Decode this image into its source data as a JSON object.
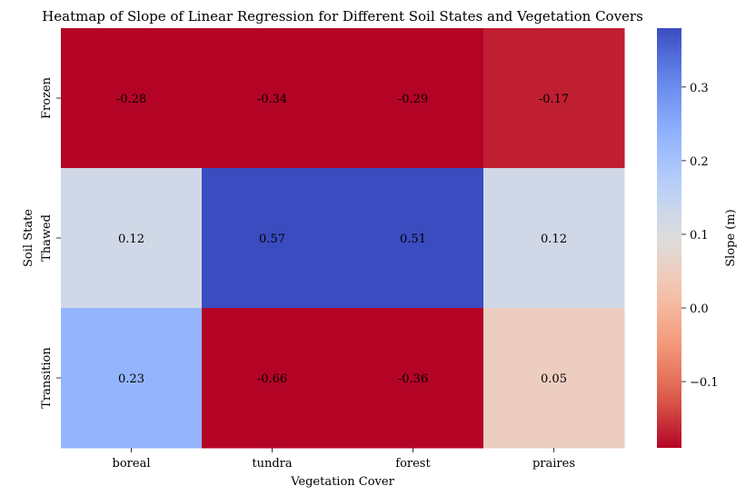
{
  "chart_data": {
    "type": "heatmap",
    "title": "Heatmap of Slope of Linear Regression for Different Soil States and Vegetation Covers",
    "xlabel": "Vegetation Cover",
    "ylabel": "Soil State",
    "x_categories": [
      "boreal",
      "tundra",
      "forest",
      "praires"
    ],
    "y_categories": [
      "Frozen",
      "Thawed",
      "Transition"
    ],
    "values": [
      [
        -0.28,
        -0.34,
        -0.29,
        -0.17
      ],
      [
        0.12,
        0.57,
        0.51,
        0.12
      ],
      [
        0.23,
        -0.66,
        -0.36,
        0.05
      ]
    ],
    "cell_labels": [
      [
        "-0.28",
        "-0.34",
        "-0.29",
        "-0.17"
      ],
      [
        "0.12",
        "0.57",
        "0.51",
        "0.12"
      ],
      [
        "0.23",
        "-0.66",
        "-0.36",
        "0.05"
      ]
    ],
    "colormap": "coolwarm_r",
    "colorbar": {
      "label": "Slope (m)",
      "range": [
        -0.19,
        0.38
      ],
      "ticks": [
        0.3,
        0.2,
        0.1,
        0.0,
        -0.1
      ],
      "tick_labels": [
        "0.3",
        "0.2",
        "0.1",
        "0.0",
        "−0.1"
      ]
    },
    "grid": false,
    "legend": "none"
  }
}
